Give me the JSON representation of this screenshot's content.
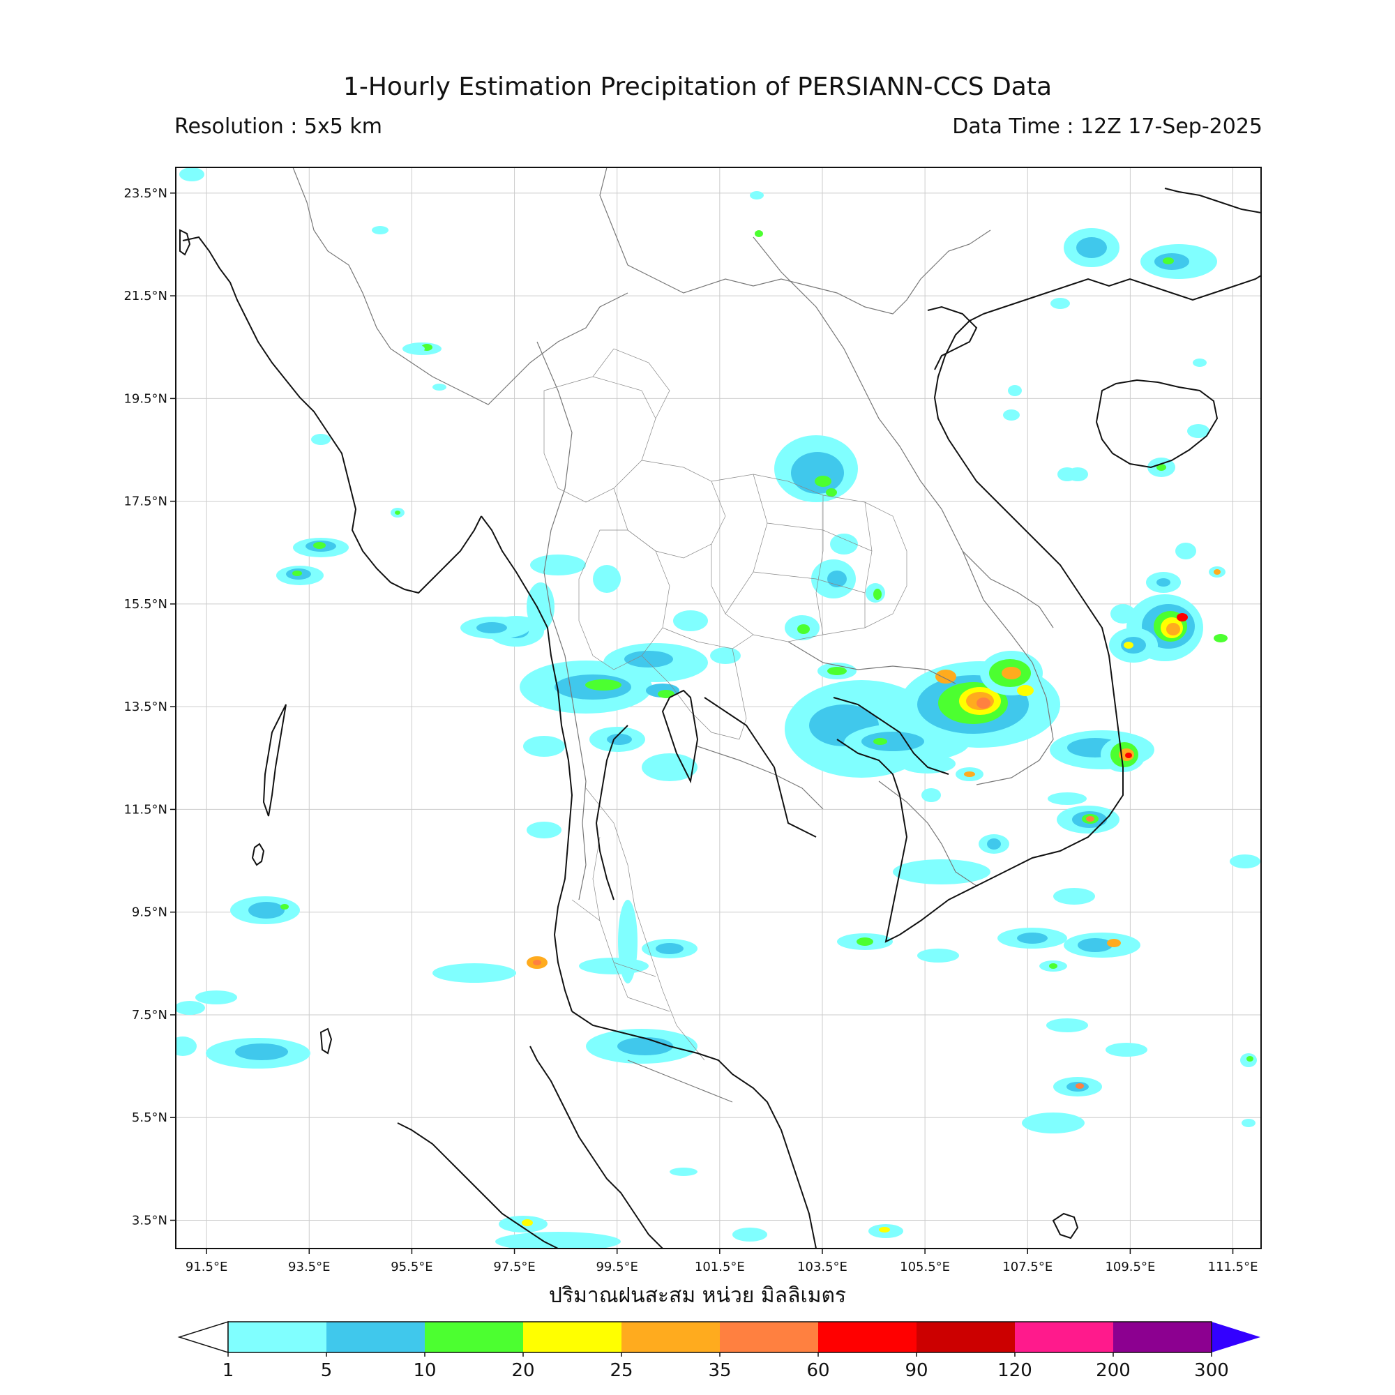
{
  "title": "1-Hourly Estimation Precipitation of PERSIANN-CCS Data",
  "subtitle_left": "Resolution : 5x5 km",
  "subtitle_right": "Data Time : 12Z 17-Sep-2025",
  "xlabel": "ปริมาณฝนสะสม หน่วย มิลลิเมตร",
  "lon_ticks": [
    "91.5°E",
    "93.5°E",
    "95.5°E",
    "97.5°E",
    "99.5°E",
    "101.5°E",
    "103.5°E",
    "105.5°E",
    "107.5°E",
    "109.5°E",
    "111.5°E"
  ],
  "lat_ticks": [
    "23.5°N",
    "21.5°N",
    "19.5°N",
    "17.5°N",
    "15.5°N",
    "13.5°N",
    "11.5°N",
    "9.5°N",
    "7.5°N",
    "5.5°N",
    "3.5°N"
  ],
  "colorbar": {
    "labels": [
      "1",
      "5",
      "10",
      "20",
      "25",
      "35",
      "60",
      "90",
      "120",
      "200",
      "300"
    ],
    "colors": [
      "#80ffff",
      "#40c8ec",
      "#4cff30",
      "#ffff00",
      "#ffab1e",
      "#ff8040",
      "#ff0000",
      "#cc0000",
      "#ff1a8c",
      "#8c0090"
    ],
    "under_color": "#ffffff",
    "over_color": "#3300ff"
  },
  "map_bounds": {
    "lon_min": 90.9,
    "lon_max": 112.05,
    "lat_min": 2.95,
    "lat_max": 24.0
  }
}
